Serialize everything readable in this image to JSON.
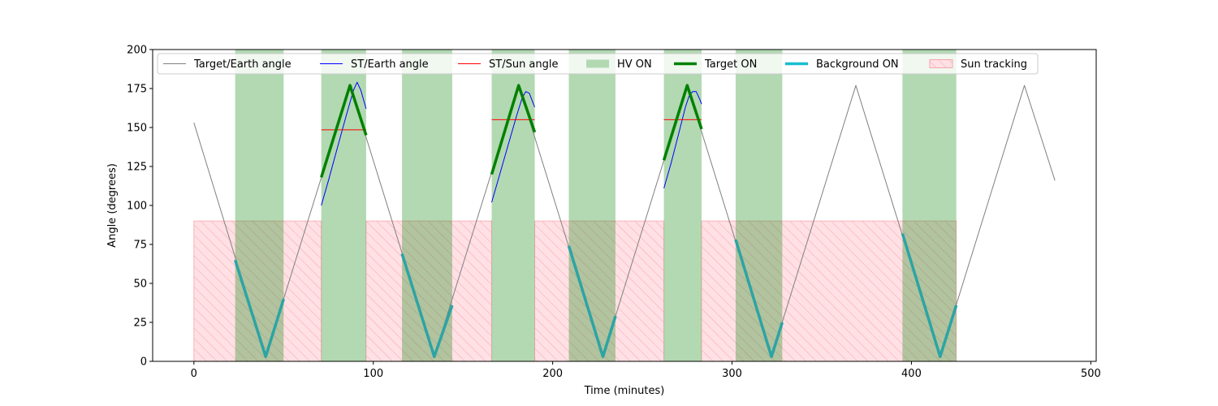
{
  "chart_data": {
    "type": "line",
    "xlabel": "Time (minutes)",
    "ylabel": "Angle (degrees)",
    "xlim": [
      -23,
      503
    ],
    "ylim": [
      0,
      200
    ],
    "xticks": [
      0,
      100,
      200,
      300,
      400,
      500
    ],
    "yticks": [
      0,
      25,
      50,
      75,
      100,
      125,
      150,
      175,
      200
    ],
    "grid": false,
    "legend_position": "top",
    "legend": [
      {
        "label": "Target/Earth angle",
        "kind": "line",
        "color": "#808080",
        "width": 1
      },
      {
        "label": "ST/Earth angle",
        "kind": "line",
        "color": "#0000ff",
        "width": 1
      },
      {
        "label": "ST/Sun angle",
        "kind": "line",
        "color": "#ff0000",
        "width": 1
      },
      {
        "label": "HV ON",
        "kind": "patch",
        "color": "#b3d9b3"
      },
      {
        "label": "Target ON",
        "kind": "line",
        "color": "#008000",
        "width": 3
      },
      {
        "label": "Background ON",
        "kind": "line",
        "color": "#17becf",
        "width": 3
      },
      {
        "label": "Sun tracking",
        "kind": "hatch",
        "color": "#ffe0e4"
      }
    ],
    "series": [
      {
        "name": "Target/Earth angle",
        "color": "#808080",
        "x": [
          0,
          40,
          87,
          134,
          181,
          228,
          275,
          322,
          369,
          416,
          463,
          480
        ],
        "y": [
          153,
          3,
          177,
          3,
          177,
          3,
          177,
          3,
          177,
          3,
          177,
          116
        ]
      },
      {
        "name": "ST/Earth angle",
        "color": "#0000ff",
        "segments": [
          {
            "x": [
              71,
              75,
              80,
              85,
              89,
              91,
              93,
              95,
              96
            ],
            "y": [
              100,
              116,
              137,
              158,
              174,
              179,
              174,
              166,
              162
            ]
          },
          {
            "x": [
              166,
              170,
              175,
              180,
              183,
              185,
              187,
              189,
              190
            ],
            "y": [
              102,
              118,
              138,
              158,
              169,
              173,
              172,
              166,
              163
            ]
          },
          {
            "x": [
              262,
              266,
              270,
              274,
              276,
              278,
              280,
              282,
              283
            ],
            "y": [
              111,
              127,
              145,
              163,
              170,
              173,
              173,
              168,
              165
            ]
          }
        ]
      },
      {
        "name": "ST/Sun angle",
        "color": "#ff0000",
        "segments": [
          {
            "x": [
              71,
              96
            ],
            "y": [
              148.5,
              148.5
            ]
          },
          {
            "x": [
              166,
              190
            ],
            "y": [
              155,
              155
            ]
          },
          {
            "x": [
              262,
              283
            ],
            "y": [
              155,
              155
            ]
          }
        ]
      },
      {
        "name": "Target ON",
        "color": "#008000",
        "segments": [
          {
            "x": [
              71,
              87,
              96
            ],
            "y": [
              118,
              177,
              145
            ]
          },
          {
            "x": [
              166,
              181,
              190
            ],
            "y": [
              120,
              177,
              147
            ]
          },
          {
            "x": [
              262,
              275,
              283
            ],
            "y": [
              129,
              177,
              149
            ]
          }
        ]
      },
      {
        "name": "Background ON",
        "color": "#2ca4a4",
        "segments": [
          {
            "x": [
              23,
              40,
              50
            ],
            "y": [
              65,
              3,
              40
            ]
          },
          {
            "x": [
              116,
              134,
              144
            ],
            "y": [
              69,
              3,
              36
            ]
          },
          {
            "x": [
              209,
              228,
              235
            ],
            "y": [
              74,
              3,
              29
            ]
          },
          {
            "x": [
              302,
              322,
              328
            ],
            "y": [
              78,
              3,
              25
            ]
          },
          {
            "x": [
              395,
              416,
              425
            ],
            "y": [
              82,
              3,
              36
            ]
          }
        ]
      }
    ],
    "hv_on_spans": [
      [
        23,
        50
      ],
      [
        71,
        96
      ],
      [
        116,
        144
      ],
      [
        166,
        190
      ],
      [
        209,
        235
      ],
      [
        262,
        283
      ],
      [
        302,
        328
      ],
      [
        395,
        425
      ]
    ],
    "sun_tracking_spans": [
      [
        0,
        71,
        90
      ],
      [
        96,
        166,
        90
      ],
      [
        190,
        262,
        90
      ],
      [
        283,
        425,
        90
      ]
    ]
  }
}
